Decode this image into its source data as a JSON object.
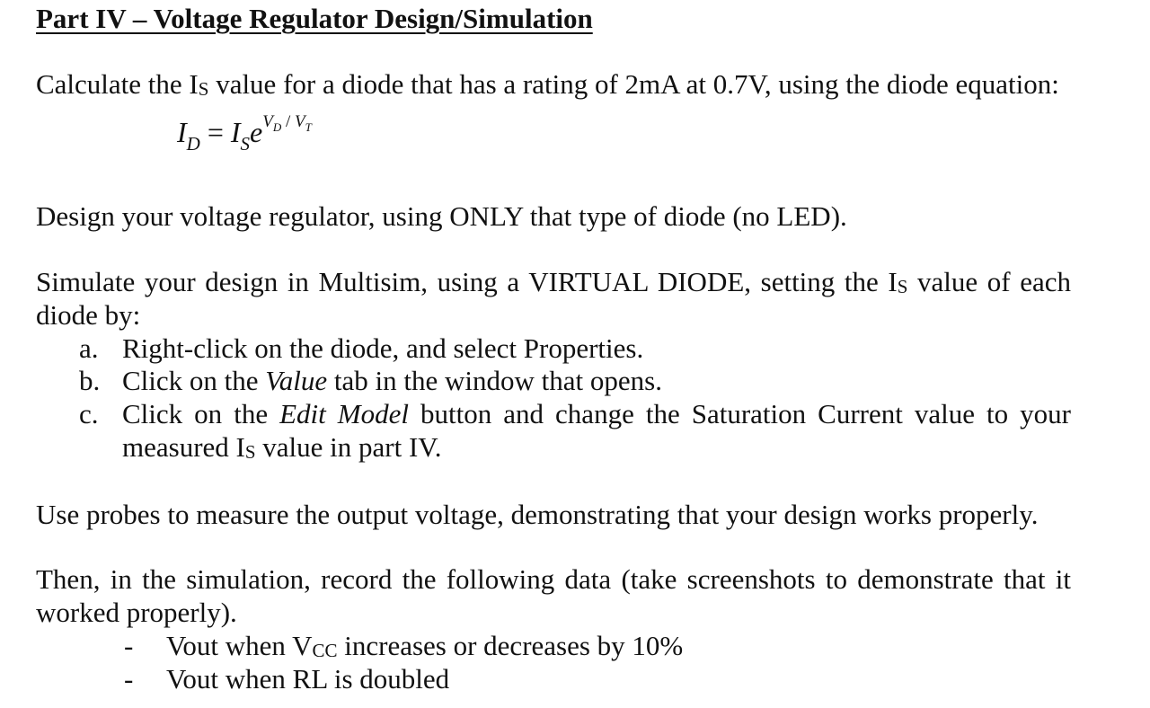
{
  "heading": "Part IV – Voltage Regulator Design/Simulation",
  "p1": {
    "before": "Calculate the I",
    "sub": "S",
    "after": " value for a diode that has a rating of 2mA at 0.7V, using the diode equation:"
  },
  "equation": {
    "lhs": "I",
    "lhs_sub": "D",
    "equals": " = ",
    "rhs": "I",
    "rhs_sub": "S",
    "base": "e",
    "exp_a": "V",
    "exp_a_sub": "D",
    "exp_sep": " / ",
    "exp_b": "V",
    "exp_b_sub": "T"
  },
  "p2": "Design your voltage regulator, using ONLY that type of diode (no LED).",
  "p3": {
    "line1_before": "Simulate your design in Multisim, using a VIRTUAL DIODE, setting the I",
    "line1_sub": "S",
    "line1_after": " value of each",
    "line2": "diode by:"
  },
  "steps": [
    {
      "marker": "a.",
      "text": "Right-click on the diode, and select Properties."
    },
    {
      "marker": "b.",
      "before": "Click on the ",
      "em": "Value",
      "after": " tab in the window that opens."
    },
    {
      "marker": "c.",
      "before": "Click on the ",
      "em": "Edit Model",
      "after": " button and change the Saturation Current value to your",
      "line2_before": "measured I",
      "line2_sub": "S",
      "line2_after": " value in part IV."
    }
  ],
  "p4": "Use probes to measure the output voltage, demonstrating that your design works properly.",
  "p5": {
    "line1": "Then, in the simulation, record the following data (take screenshots to demonstrate that it",
    "line2": "worked properly)."
  },
  "bullets": [
    {
      "marker": "-",
      "before": "Vout when V",
      "sub": "CC",
      "after": " increases or decreases by 10%"
    },
    {
      "marker": "-",
      "text": "Vout when RL is doubled"
    }
  ]
}
